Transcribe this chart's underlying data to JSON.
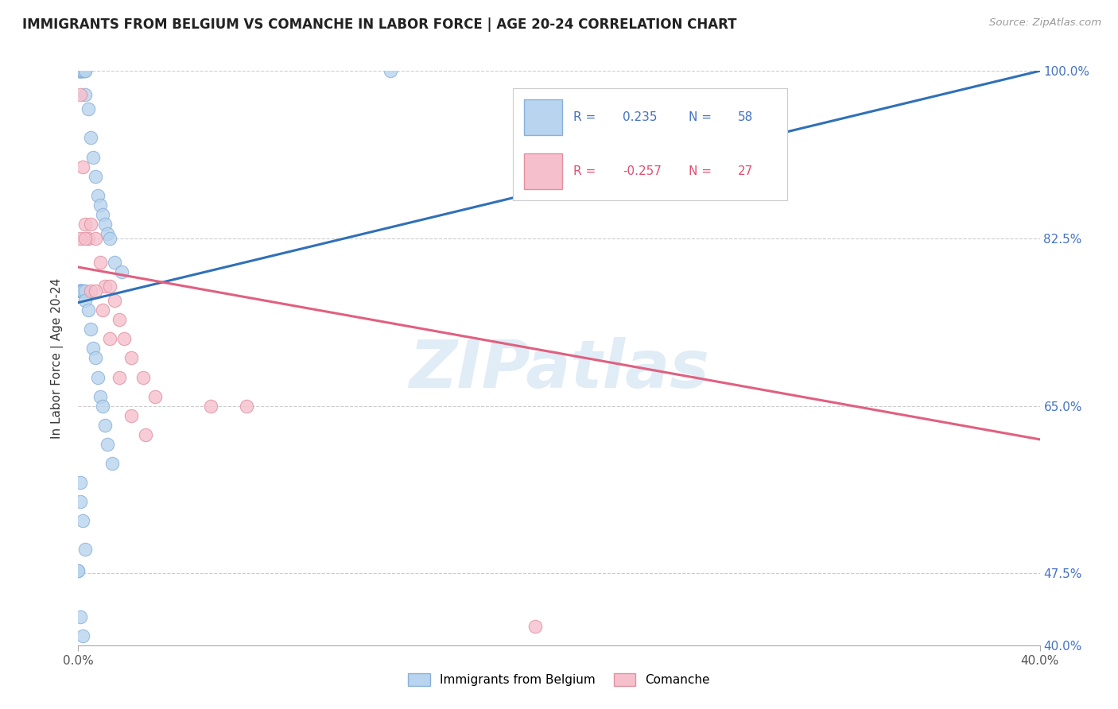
{
  "title": "IMMIGRANTS FROM BELGIUM VS COMANCHE IN LABOR FORCE | AGE 20-24 CORRELATION CHART",
  "source": "Source: ZipAtlas.com",
  "ylabel": "In Labor Force | Age 20-24",
  "legend_label1": "Immigrants from Belgium",
  "legend_label2": "Comanche",
  "r1_text": "0.235",
  "n1_text": "58",
  "r2_text": "-0.257",
  "n2_text": "27",
  "color_blue_fill": "#b8d4ee",
  "color_blue_edge": "#8ab0d8",
  "color_pink_fill": "#f5c0cc",
  "color_pink_edge": "#e090a0",
  "color_blue_line": "#3070b8",
  "color_pink_line": "#e06080",
  "color_blue_text": "#4472c4",
  "color_pink_text": "#e05070",
  "color_grid": "#cccccc",
  "watermark_color": "#cce0f0",
  "xmin": 0.0,
  "xmax": 0.4,
  "ymin": 0.4,
  "ymax": 1.0,
  "y_ticks": [
    0.4,
    0.475,
    0.65,
    0.825,
    1.0
  ],
  "y_tick_labels": [
    "40.0%",
    "47.5%",
    "65.0%",
    "82.5%",
    "100.0%"
  ],
  "blue_x": [
    0.0,
    0.0,
    0.001,
    0.001,
    0.001,
    0.001,
    0.001,
    0.001,
    0.001,
    0.002,
    0.002,
    0.002,
    0.002,
    0.003,
    0.003,
    0.003,
    0.004,
    0.005,
    0.006,
    0.007,
    0.008,
    0.009,
    0.01,
    0.011,
    0.012,
    0.013,
    0.015,
    0.018,
    0.13,
    0.001,
    0.001,
    0.001,
    0.001,
    0.001,
    0.001,
    0.002,
    0.002,
    0.002,
    0.003,
    0.003,
    0.004,
    0.005,
    0.006,
    0.007,
    0.008,
    0.009,
    0.01,
    0.011,
    0.012,
    0.014,
    0.001,
    0.002,
    0.003,
    0.0,
    0.0,
    0.001,
    0.002,
    0.001
  ],
  "blue_y": [
    1.0,
    1.0,
    1.0,
    1.0,
    1.0,
    1.0,
    1.0,
    1.0,
    1.0,
    1.0,
    1.0,
    1.0,
    1.0,
    1.0,
    1.0,
    0.975,
    0.96,
    0.93,
    0.91,
    0.89,
    0.87,
    0.86,
    0.85,
    0.84,
    0.83,
    0.825,
    0.8,
    0.79,
    1.0,
    0.77,
    0.77,
    0.77,
    0.77,
    0.77,
    0.77,
    0.77,
    0.77,
    0.77,
    0.77,
    0.76,
    0.75,
    0.73,
    0.71,
    0.7,
    0.68,
    0.66,
    0.65,
    0.63,
    0.61,
    0.59,
    0.55,
    0.53,
    0.5,
    0.478,
    0.478,
    0.43,
    0.41,
    0.57
  ],
  "pink_x": [
    0.001,
    0.002,
    0.003,
    0.004,
    0.005,
    0.007,
    0.009,
    0.011,
    0.013,
    0.015,
    0.017,
    0.019,
    0.022,
    0.027,
    0.032,
    0.001,
    0.003,
    0.005,
    0.007,
    0.01,
    0.013,
    0.017,
    0.022,
    0.028,
    0.055,
    0.07,
    0.19
  ],
  "pink_y": [
    0.975,
    0.9,
    0.84,
    0.825,
    0.84,
    0.825,
    0.8,
    0.775,
    0.775,
    0.76,
    0.74,
    0.72,
    0.7,
    0.68,
    0.66,
    0.825,
    0.825,
    0.77,
    0.77,
    0.75,
    0.72,
    0.68,
    0.64,
    0.62,
    0.65,
    0.65,
    0.42
  ],
  "blue_trend_x": [
    0.0,
    0.4
  ],
  "blue_trend_y": [
    0.758,
    1.0
  ],
  "pink_trend_x": [
    0.0,
    0.4
  ],
  "pink_trend_y": [
    0.795,
    0.615
  ]
}
